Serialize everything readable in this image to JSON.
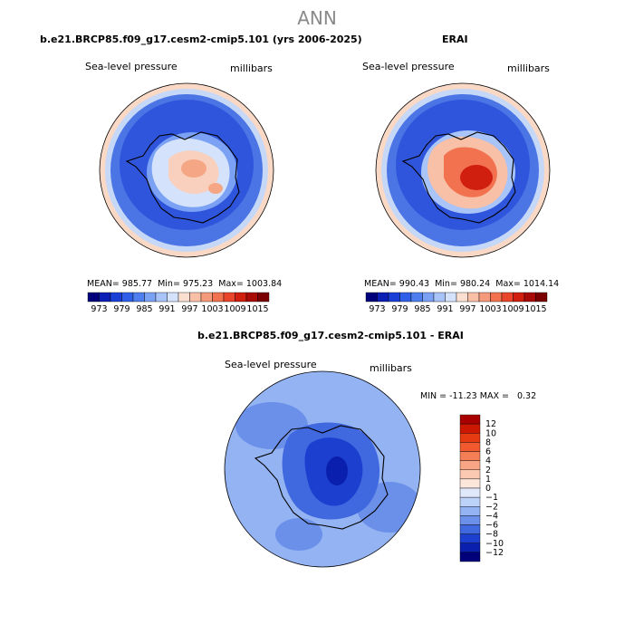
{
  "season": "ANN",
  "panels": {
    "model": {
      "title": "b.e21.BRCP85.f09_g17.cesm2-cmip5.101 (yrs 2006-2025)",
      "variable": "Sea-level pressure",
      "units": "millibars",
      "stats": {
        "mean_label": "MEAN=",
        "mean": "985.77",
        "min_label": "Min=",
        "min": "975.23",
        "max_label": "Max=",
        "max": "1003.84"
      }
    },
    "obs": {
      "title": "ERAI",
      "variable": "Sea-level pressure",
      "units": "millibars",
      "stats": {
        "mean_label": "MEAN=",
        "mean": "990.43",
        "min_label": "Min=",
        "min": "980.24",
        "max_label": "Max=",
        "max": "1014.14"
      }
    },
    "diff": {
      "title": "b.e21.BRCP85.f09_g17.cesm2-cmip5.101 - ERAI",
      "variable": "Sea-level pressure",
      "units": "millibars",
      "minmax": "MIN = -11.23 MAX =   0.32"
    }
  },
  "chart_data": [
    {
      "type": "heatmap",
      "projection": "south-polar-stereographic",
      "title": "b.e21.BRCP85.f09_g17.cesm2-cmip5.101 (yrs 2006-2025)",
      "field": "Sea-level pressure",
      "units": "millibars",
      "mean": 985.77,
      "min": 975.23,
      "max": 1003.84,
      "colorbar_levels": [
        973,
        976,
        979,
        982,
        985,
        988,
        991,
        994,
        997,
        1000,
        1003,
        1006,
        1009,
        1012,
        1015
      ],
      "colorbar_tick_labels": [
        "973",
        "979",
        "985",
        "991",
        "997",
        "1003",
        "1009",
        "1015"
      ],
      "colors": [
        "#00007a",
        "#0b1fb5",
        "#1a3fd6",
        "#2f5fe8",
        "#4f7fef",
        "#7aa1f4",
        "#a8c4f8",
        "#d4e2fb",
        "#fbe0d2",
        "#f8c0a6",
        "#f59b7c",
        "#f2714f",
        "#e9452a",
        "#d11f0f",
        "#a80a05",
        "#7a0000"
      ]
    },
    {
      "type": "heatmap",
      "projection": "south-polar-stereographic",
      "title": "ERAI",
      "field": "Sea-level pressure",
      "units": "millibars",
      "mean": 990.43,
      "min": 980.24,
      "max": 1014.14,
      "colorbar_levels": [
        973,
        976,
        979,
        982,
        985,
        988,
        991,
        994,
        997,
        1000,
        1003,
        1006,
        1009,
        1012,
        1015
      ],
      "colorbar_tick_labels": [
        "973",
        "979",
        "985",
        "991",
        "997",
        "1003",
        "1009",
        "1015"
      ],
      "colors": [
        "#00007a",
        "#0b1fb5",
        "#1a3fd6",
        "#2f5fe8",
        "#4f7fef",
        "#7aa1f4",
        "#a8c4f8",
        "#d4e2fb",
        "#fbe0d2",
        "#f8c0a6",
        "#f59b7c",
        "#f2714f",
        "#e9452a",
        "#d11f0f",
        "#a80a05",
        "#7a0000"
      ]
    },
    {
      "type": "heatmap",
      "projection": "south-polar-stereographic",
      "title": "b.e21.BRCP85.f09_g17.cesm2-cmip5.101 - ERAI",
      "field": "Sea-level pressure",
      "units": "millibars",
      "min": -11.23,
      "max": 0.32,
      "colorbar_levels": [
        -12,
        -10,
        -8,
        -6,
        -4,
        -2,
        -1,
        0,
        1,
        2,
        4,
        6,
        8,
        10,
        12
      ],
      "colorbar_tick_labels": [
        "12",
        "10",
        "8",
        "6",
        "4",
        "2",
        "1",
        "0",
        "−1",
        "−2",
        "−4",
        "−6",
        "−8",
        "−10",
        "−12"
      ],
      "colors_top_to_bottom": [
        "#a80000",
        "#cc1800",
        "#e63a12",
        "#f05a2e",
        "#f47e56",
        "#f8a585",
        "#fbc8b1",
        "#fde6dc",
        "#dfe9fb",
        "#bdd2f8",
        "#94b3f2",
        "#6b90ea",
        "#4068df",
        "#1c3fcf",
        "#0b1fae",
        "#00007a"
      ]
    }
  ]
}
